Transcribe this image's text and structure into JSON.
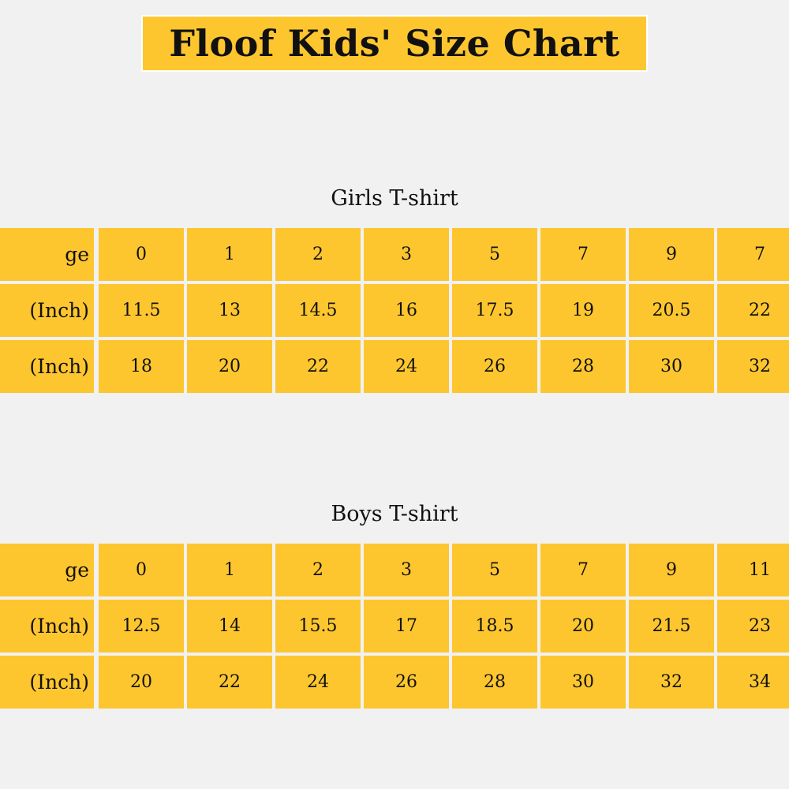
{
  "title": "Floof Kids' Size Chart",
  "colors": {
    "background": "#f1f1f1",
    "cell_fill": "#fdc62f",
    "cell_border": "#ffffff",
    "text": "#111111"
  },
  "girls": {
    "heading": "Girls T-shirt",
    "rows": [
      {
        "label": "ge",
        "values": [
          "0",
          "1",
          "2",
          "3",
          "5",
          "7",
          "9",
          "7"
        ]
      },
      {
        "label": "(Inch)",
        "values": [
          "11.5",
          "13",
          "14.5",
          "16",
          "17.5",
          "19",
          "20.5",
          "22"
        ]
      },
      {
        "label": "(Inch)",
        "values": [
          "18",
          "20",
          "22",
          "24",
          "26",
          "28",
          "30",
          "32"
        ]
      }
    ]
  },
  "boys": {
    "heading": "Boys T-shirt",
    "rows": [
      {
        "label": "ge",
        "values": [
          "0",
          "1",
          "2",
          "3",
          "5",
          "7",
          "9",
          "11"
        ]
      },
      {
        "label": "(Inch)",
        "values": [
          "12.5",
          "14",
          "15.5",
          "17",
          "18.5",
          "20",
          "21.5",
          "23"
        ]
      },
      {
        "label": "(Inch)",
        "values": [
          "20",
          "22",
          "24",
          "26",
          "28",
          "30",
          "32",
          "34"
        ]
      }
    ]
  }
}
